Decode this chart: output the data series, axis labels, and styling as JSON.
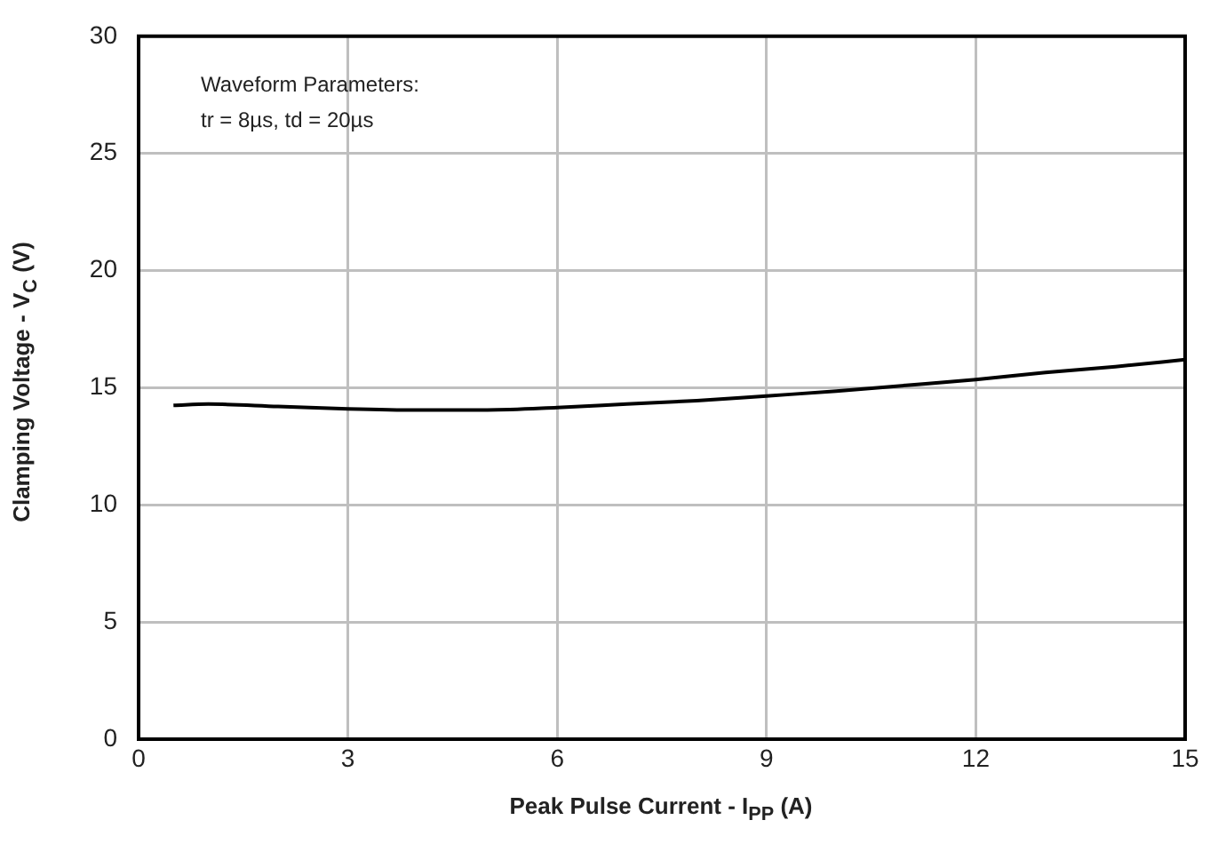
{
  "chart_data": {
    "type": "line",
    "xlabel": "Peak Pulse Current - I$_{PP}$ (A)",
    "ylabel": "Clamping Voltage - V$_{C}$ (V)",
    "annotations": [
      "Waveform Parameters:",
      "tr = 8µs, td = 20µs"
    ],
    "x": [
      0.5,
      1,
      2,
      3,
      4,
      5,
      6,
      7,
      8,
      9,
      10,
      11,
      12,
      13,
      14,
      15
    ],
    "series": [
      {
        "color": "#000000",
        "values": [
          14.25,
          14.3,
          14.2,
          14.1,
          14.05,
          14.05,
          14.15,
          14.3,
          14.45,
          14.65,
          14.85,
          15.1,
          15.35,
          15.65,
          15.9,
          16.2
        ]
      }
    ],
    "xlim": [
      0,
      15
    ],
    "xticks": [
      0,
      3,
      6,
      9,
      12,
      15
    ],
    "ylim": [
      0,
      30
    ],
    "yticks": [
      0,
      5,
      10,
      15,
      20,
      25,
      30
    ],
    "grid": true,
    "legend": false,
    "marker": "none",
    "line_style": "solid"
  }
}
